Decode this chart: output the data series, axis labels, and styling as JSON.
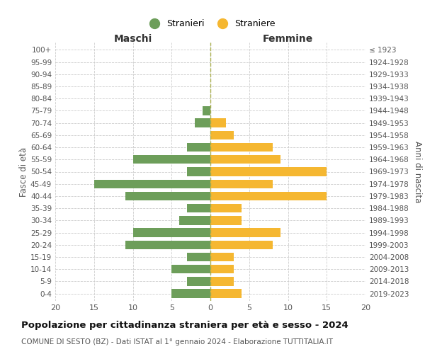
{
  "age_groups": [
    "0-4",
    "5-9",
    "10-14",
    "15-19",
    "20-24",
    "25-29",
    "30-34",
    "35-39",
    "40-44",
    "45-49",
    "50-54",
    "55-59",
    "60-64",
    "65-69",
    "70-74",
    "75-79",
    "80-84",
    "85-89",
    "90-94",
    "95-99",
    "100+"
  ],
  "birth_years": [
    "2019-2023",
    "2014-2018",
    "2009-2013",
    "2004-2008",
    "1999-2003",
    "1994-1998",
    "1989-1993",
    "1984-1988",
    "1979-1983",
    "1974-1978",
    "1969-1973",
    "1964-1968",
    "1959-1963",
    "1954-1958",
    "1949-1953",
    "1944-1948",
    "1939-1943",
    "1934-1938",
    "1929-1933",
    "1924-1928",
    "≤ 1923"
  ],
  "males": [
    5,
    3,
    5,
    3,
    11,
    10,
    4,
    3,
    11,
    15,
    3,
    10,
    3,
    0,
    2,
    1,
    0,
    0,
    0,
    0,
    0
  ],
  "females": [
    4,
    3,
    3,
    3,
    8,
    9,
    4,
    4,
    15,
    8,
    15,
    9,
    8,
    3,
    2,
    0,
    0,
    0,
    0,
    0,
    0
  ],
  "male_color": "#6d9e5a",
  "female_color": "#f5b731",
  "male_label": "Stranieri",
  "female_label": "Straniere",
  "xlim": 20,
  "title": "Popolazione per cittadinanza straniera per età e sesso - 2024",
  "subtitle": "COMUNE DI SESTO (BZ) - Dati ISTAT al 1° gennaio 2024 - Elaborazione TUTTITALIA.IT",
  "ylabel_left": "Fasce di età",
  "ylabel_right": "Anni di nascita",
  "xlabel_left": "Maschi",
  "xlabel_right": "Femmine",
  "background_color": "#ffffff",
  "grid_color": "#cccccc",
  "bar_height": 0.72
}
